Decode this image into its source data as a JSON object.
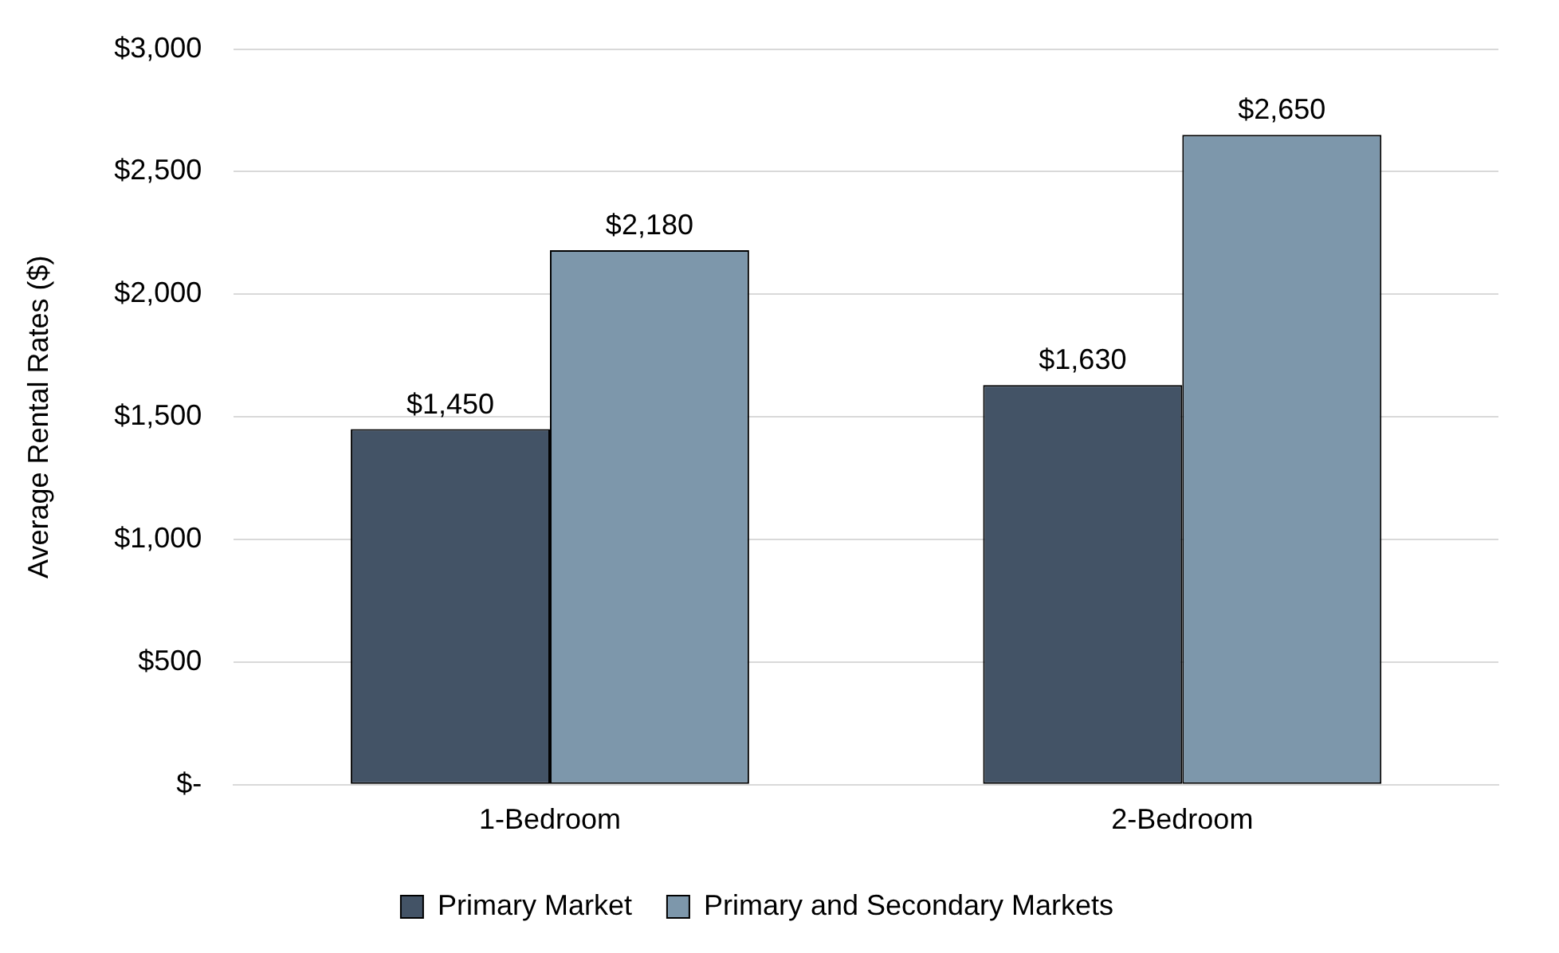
{
  "chart_data": {
    "type": "bar",
    "ylabel": "Average Rental Rates ($)",
    "categories": [
      "1-Bedroom",
      "2-Bedroom"
    ],
    "series": [
      {
        "name": "Primary Market",
        "color": "#435366",
        "values": [
          1450,
          1630
        ],
        "value_labels": [
          "$1,450",
          "$1,630"
        ]
      },
      {
        "name": "Primary and Secondary Markets",
        "color": "#7d97ab",
        "values": [
          2180,
          2650
        ],
        "value_labels": [
          "$2,180",
          "$2,650"
        ]
      }
    ],
    "ylim": [
      0,
      3000
    ],
    "yticks": [
      {
        "value": 0,
        "label": "$-"
      },
      {
        "value": 500,
        "label": "$500"
      },
      {
        "value": 1000,
        "label": "$1,000"
      },
      {
        "value": 1500,
        "label": "$1,500"
      },
      {
        "value": 2000,
        "label": "$2,000"
      },
      {
        "value": 2500,
        "label": "$2,500"
      },
      {
        "value": 3000,
        "label": "$3,000"
      }
    ],
    "grid": "y",
    "legend": "bottom"
  }
}
